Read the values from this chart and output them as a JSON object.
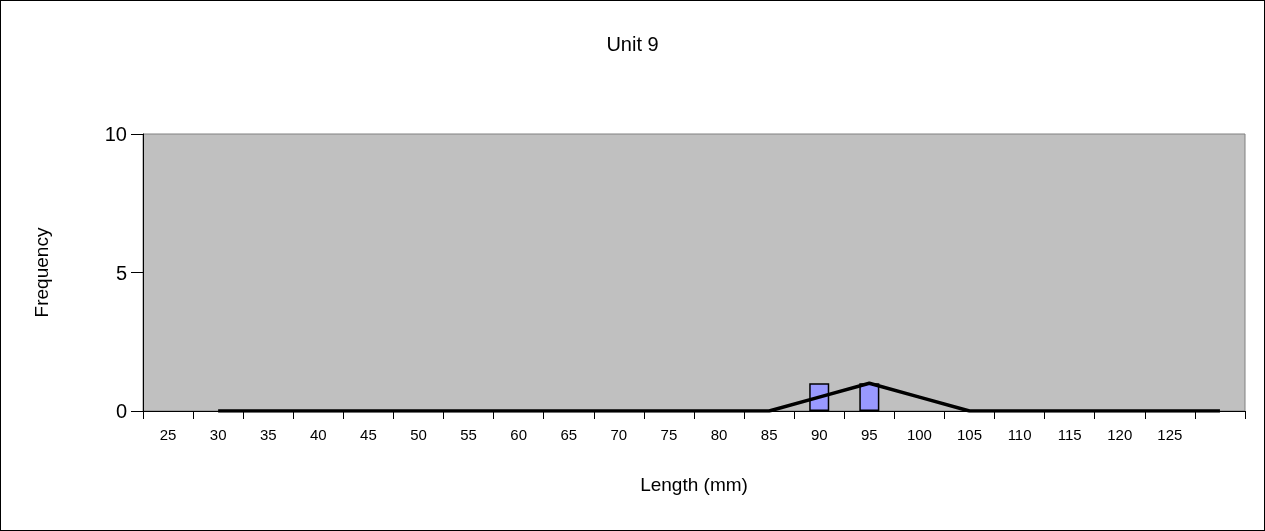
{
  "chart_data": {
    "type": "bar",
    "title": "Unit 9",
    "xlabel": "Length (mm)",
    "ylabel": "Frequency",
    "categories": [
      "25",
      "30",
      "35",
      "40",
      "45",
      "50",
      "55",
      "60",
      "65",
      "70",
      "75",
      "80",
      "85",
      "90",
      "95",
      "100",
      "105",
      "110",
      "115",
      "120",
      "125",
      null
    ],
    "series": [
      {
        "color": "#9999ff",
        "values": [
          0,
          0,
          0,
          0,
          0,
          0,
          0,
          0,
          0,
          0,
          0,
          0,
          0,
          1,
          1,
          0,
          0,
          0,
          0,
          0,
          0,
          0
        ]
      },
      {
        "type": "line",
        "color": "#000000",
        "values": [
          null,
          0,
          0,
          0,
          0,
          0,
          0,
          0,
          0,
          0,
          0,
          0,
          0,
          0.5,
          1,
          0.5,
          0,
          0,
          0,
          0,
          0,
          0
        ]
      }
    ],
    "ylim": [
      0,
      10
    ],
    "yticks": [
      0,
      5,
      10
    ],
    "grid": false,
    "marker": "none",
    "line_style": "solid"
  }
}
